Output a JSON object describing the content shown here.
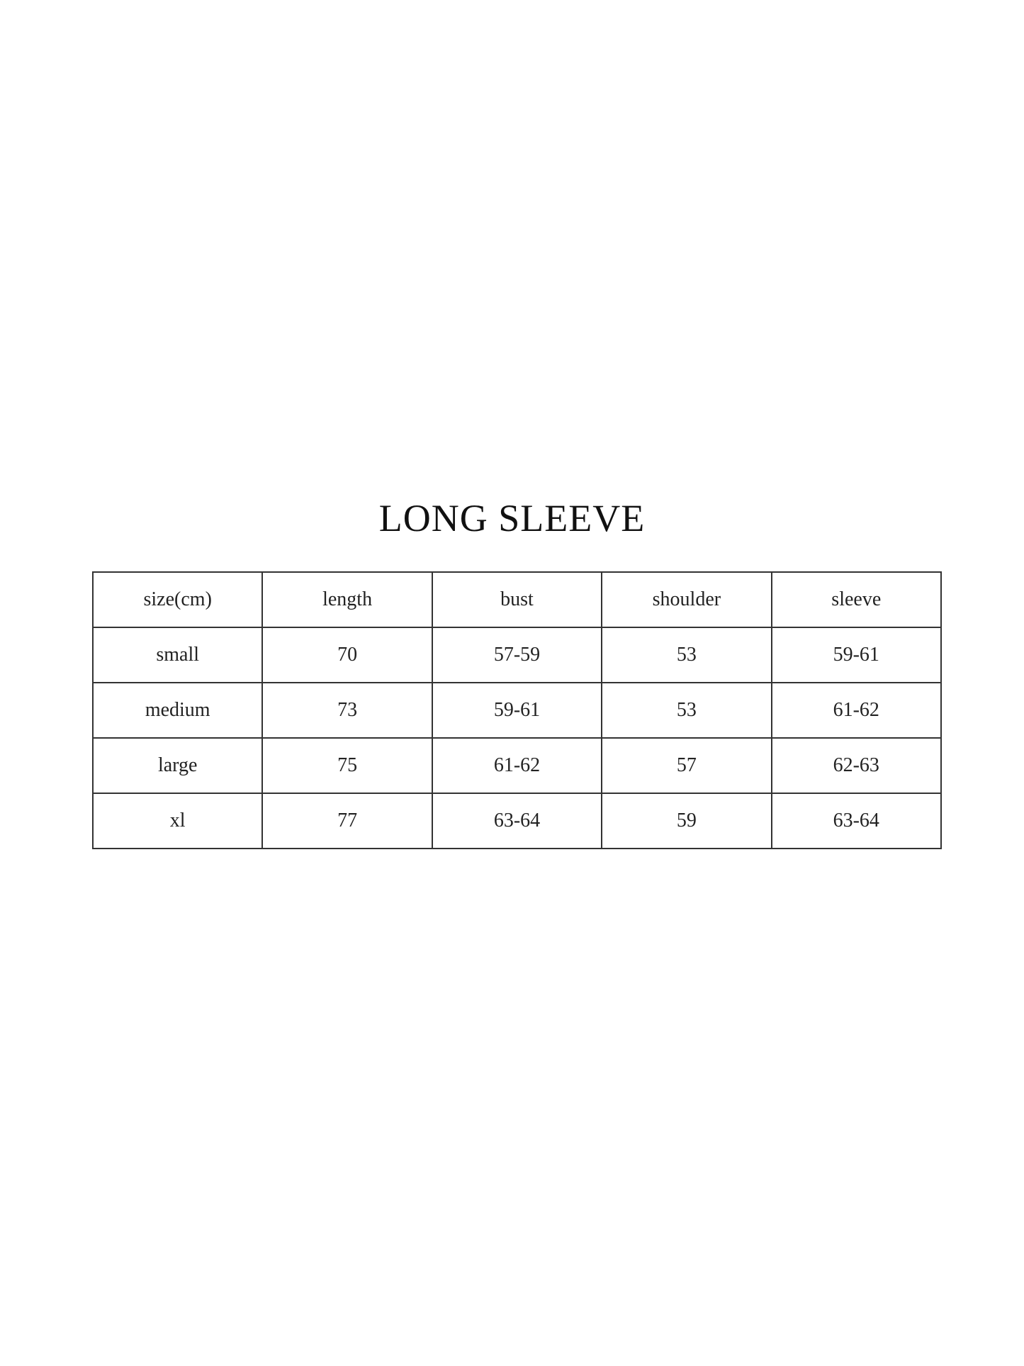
{
  "title": "LONG SLEEVE",
  "table": {
    "headers": [
      "size(cm)",
      "length",
      "bust",
      "shoulder",
      "sleeve"
    ],
    "rows": [
      [
        "small",
        "70",
        "57-59",
        "53",
        "59-61"
      ],
      [
        "medium",
        "73",
        "59-61",
        "53",
        "61-62"
      ],
      [
        "large",
        "75",
        "61-62",
        "57",
        "62-63"
      ],
      [
        "xl",
        "77",
        "63-64",
        "59",
        "63-64"
      ]
    ]
  }
}
